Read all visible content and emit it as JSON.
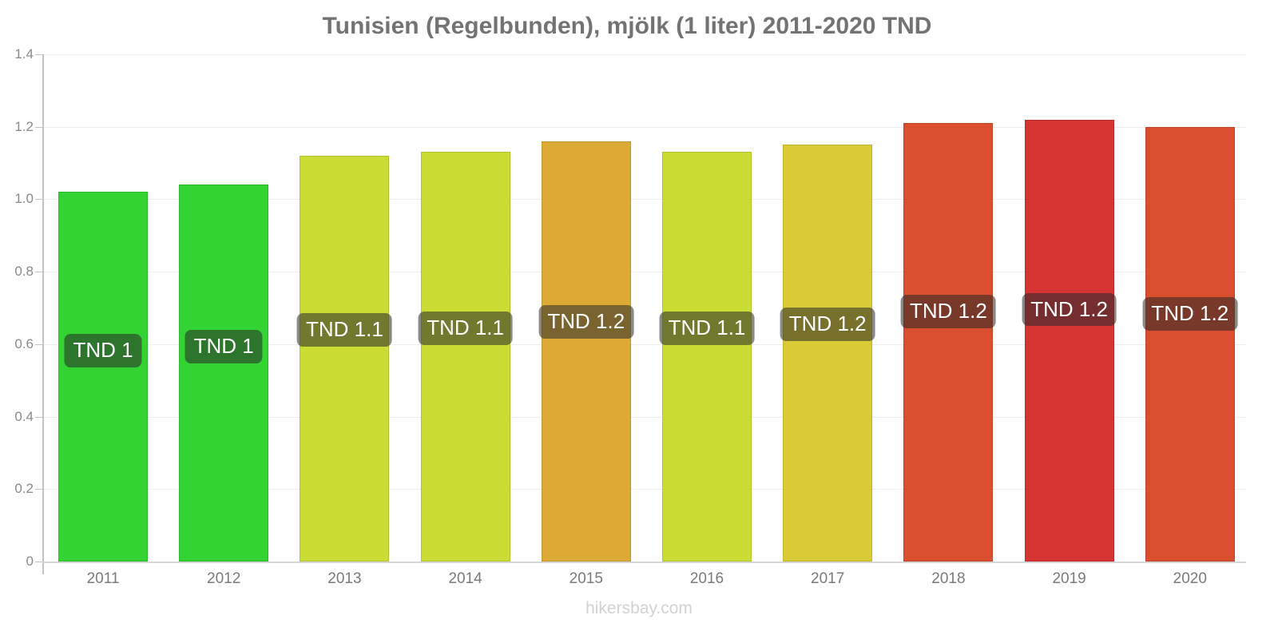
{
  "title": "Tunisien (Regelbunden), mjölk (1 liter) 2011-2020 TND",
  "footer": "hikersbay.com",
  "chart_data": {
    "type": "bar",
    "title": "Tunisien (Regelbunden), mjölk (1 liter) 2011-2020 TND",
    "categories": [
      "2011",
      "2012",
      "2013",
      "2014",
      "2015",
      "2016",
      "2017",
      "2018",
      "2019",
      "2020"
    ],
    "values": [
      1.02,
      1.04,
      1.12,
      1.13,
      1.16,
      1.13,
      1.15,
      1.21,
      1.22,
      1.2
    ],
    "bar_labels": [
      "TND 1",
      "TND 1",
      "TND 1.1",
      "TND 1.1",
      "TND 1.2",
      "TND 1.1",
      "TND 1.2",
      "TND 1.2",
      "TND 1.2",
      "TND 1.2"
    ],
    "bar_colors": [
      "#34d334",
      "#34d334",
      "#cbdc35",
      "#cbdc35",
      "#dcaa35",
      "#cbdc35",
      "#d9cb35",
      "#d94f30",
      "#d63333",
      "#d94f30"
    ],
    "xlabel": "",
    "ylabel": "",
    "ylim": [
      0,
      1.4
    ],
    "ytick_step": 0.2,
    "ytick_labels": [
      "0",
      "0.2",
      "0.4",
      "0.6",
      "0.8",
      "1.0",
      "1.2",
      "1.4"
    ],
    "grid": true,
    "legend": "none",
    "label_bg": "rgba(40,40,40,0.55)",
    "label_text_color": "#ffffff",
    "watermark": "hikersbay.com"
  },
  "colors": {
    "title_text": "#737373",
    "ytick_text": "#8a8a8a",
    "xtick_text": "#7a7a7a",
    "footer_text": "#d2d2d2",
    "axis_line": "#c2c2c2",
    "grid_line": "#ededed",
    "background": "#ffffff"
  }
}
